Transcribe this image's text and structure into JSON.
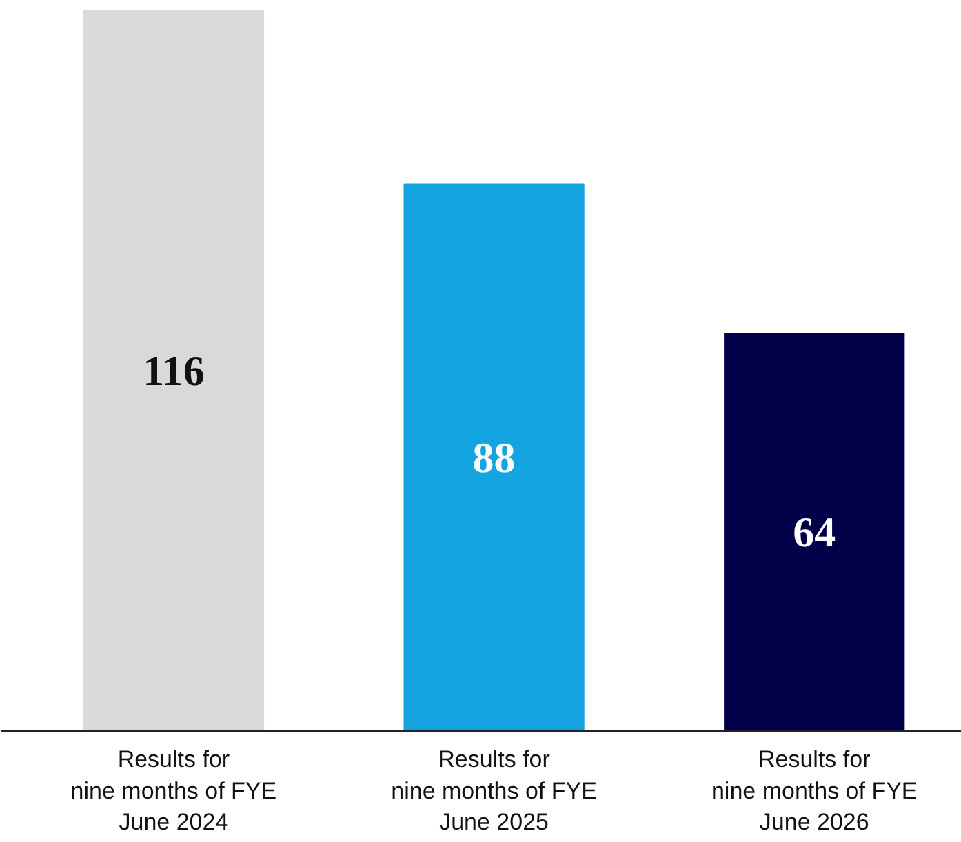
{
  "chart_data": {
    "type": "bar",
    "categories": [
      "Results for\nnine months of FYE\nJune 2024",
      "Results for\nnine months of FYE\nJune 2025",
      "Results for\nnine months of FYE\nJune 2026"
    ],
    "values": [
      116,
      88,
      64
    ],
    "colors": [
      "#d9d9d9",
      "#14a5e0",
      "#03004a"
    ],
    "ylim": [
      0,
      116
    ],
    "data_labels": true,
    "tick_labels": "x",
    "grid": false
  }
}
